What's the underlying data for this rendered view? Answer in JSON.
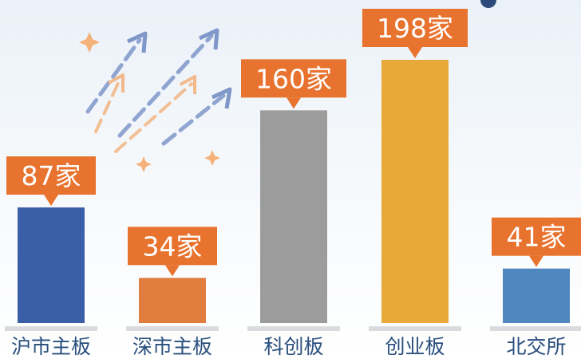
{
  "chart_data": {
    "type": "bar",
    "categories": [
      "沪市主板",
      "深市主板",
      "科创板",
      "创业板",
      "北交所"
    ],
    "values": [
      87,
      34,
      160,
      198,
      41
    ],
    "value_labels": [
      "87家",
      "34家",
      "160家",
      "198家",
      "41家"
    ],
    "unit": "家",
    "bar_colors": [
      "#3a5ea8",
      "#e07d3f",
      "#9c9c9c",
      "#e6a93a",
      "#4f87bf"
    ],
    "label_color": "#e8732f",
    "title": "",
    "xlabel": "",
    "ylabel": "",
    "ylim": [
      0,
      220
    ],
    "grid": false,
    "legend": "none"
  }
}
